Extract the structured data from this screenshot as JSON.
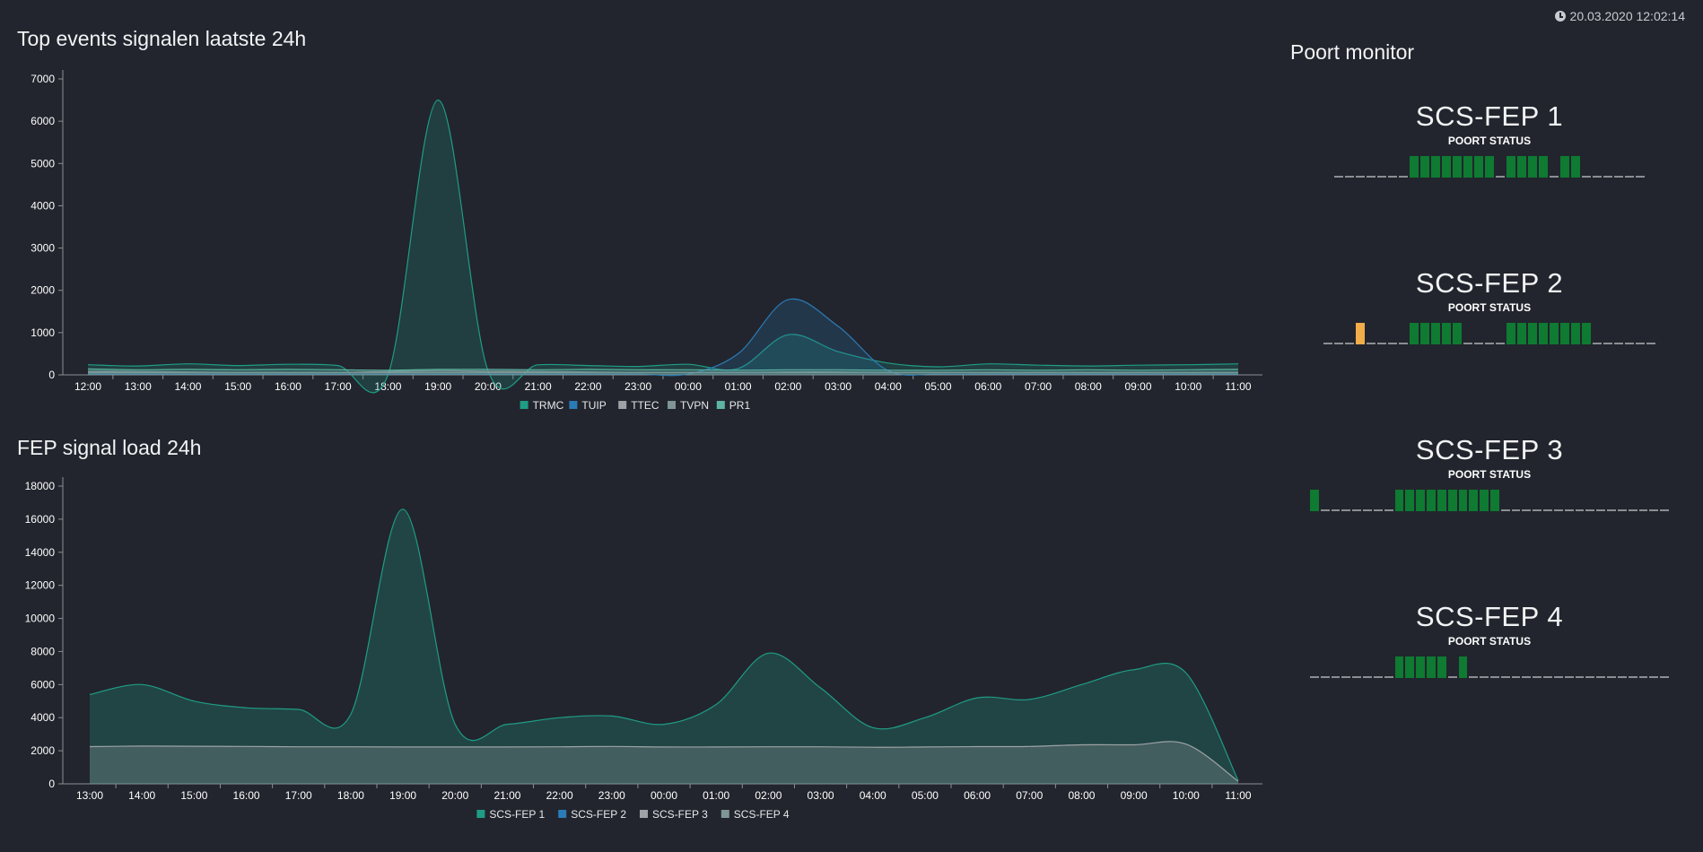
{
  "header": {
    "timestamp": "20.03.2020 12:02:14",
    "clock_icon": "clock-icon"
  },
  "panels": {
    "top_events_title": "Top events signalen laatste 24h",
    "signal_load_title": "FEP signal load 24h",
    "monitor_title": "Poort monitor"
  },
  "colors": {
    "background": "#22252d",
    "teal": "#1f9c86",
    "blue": "#2b7bb6",
    "gray": "#9ea3a6",
    "slate": "#7f9596",
    "mint": "#5fb3a4",
    "port_up": "#0e7a32",
    "port_warn": "#f2ad4a",
    "port_down": "#8b8e93"
  },
  "chart_data": [
    {
      "type": "area",
      "title": "Top events signalen laatste 24h",
      "x": [
        "12:00",
        "13:00",
        "14:00",
        "15:00",
        "16:00",
        "17:00",
        "18:00",
        "19:00",
        "20:00",
        "21:00",
        "22:00",
        "23:00",
        "00:00",
        "01:00",
        "02:00",
        "03:00",
        "04:00",
        "05:00",
        "06:00",
        "07:00",
        "08:00",
        "09:00",
        "10:00",
        "11:00"
      ],
      "ylim": [
        0,
        7000
      ],
      "yticks": [
        0,
        1000,
        2000,
        3000,
        4000,
        5000,
        6000,
        7000
      ],
      "grid": false,
      "legend": "bottom-center",
      "series": [
        {
          "name": "TRMC",
          "color": "#1f9c86",
          "values": [
            240,
            210,
            260,
            220,
            250,
            220,
            0,
            6500,
            100,
            240,
            220,
            200,
            250,
            150,
            950,
            550,
            280,
            190,
            260,
            230,
            210,
            230,
            240,
            260
          ]
        },
        {
          "name": "TUIP",
          "color": "#2b7bb6",
          "values": [
            20,
            20,
            20,
            20,
            20,
            20,
            20,
            20,
            20,
            20,
            20,
            20,
            20,
            500,
            1780,
            1150,
            100,
            20,
            20,
            20,
            20,
            20,
            20,
            20
          ]
        },
        {
          "name": "TTEC",
          "color": "#9ea3a6",
          "values": [
            60,
            60,
            60,
            60,
            60,
            60,
            60,
            60,
            60,
            60,
            60,
            60,
            60,
            60,
            60,
            60,
            60,
            60,
            60,
            60,
            60,
            60,
            60,
            60
          ]
        },
        {
          "name": "TVPN",
          "color": "#7f9596",
          "values": [
            90,
            80,
            70,
            60,
            60,
            60,
            80,
            100,
            90,
            80,
            70,
            60,
            60,
            60,
            70,
            70,
            60,
            60,
            60,
            60,
            60,
            60,
            60,
            60
          ]
        },
        {
          "name": "PR1",
          "color": "#5fb3a4",
          "values": [
            140,
            120,
            130,
            120,
            130,
            120,
            110,
            130,
            130,
            120,
            130,
            120,
            120,
            110,
            120,
            120,
            110,
            110,
            120,
            110,
            120,
            110,
            120,
            130
          ]
        }
      ]
    },
    {
      "type": "area",
      "title": "FEP signal load 24h",
      "x": [
        "13:00",
        "14:00",
        "15:00",
        "16:00",
        "17:00",
        "18:00",
        "19:00",
        "20:00",
        "21:00",
        "22:00",
        "23:00",
        "00:00",
        "01:00",
        "02:00",
        "03:00",
        "04:00",
        "05:00",
        "06:00",
        "07:00",
        "08:00",
        "09:00",
        "10:00",
        "11:00"
      ],
      "ylim": [
        0,
        18000
      ],
      "yticks": [
        0,
        2000,
        4000,
        6000,
        8000,
        10000,
        12000,
        14000,
        16000,
        18000
      ],
      "grid": false,
      "legend": "bottom-center",
      "series": [
        {
          "name": "SCS-FEP 1",
          "color": "#1f9c86",
          "values": [
            5400,
            6000,
            5000,
            4600,
            4500,
            4200,
            16600,
            3600,
            3600,
            4000,
            4100,
            3600,
            4800,
            7900,
            5800,
            3400,
            4000,
            5200,
            5100,
            6000,
            6900,
            6700,
            200
          ]
        },
        {
          "name": "SCS-FEP 2",
          "color": "#2b7bb6",
          "values": [
            0,
            0,
            0,
            0,
            0,
            0,
            0,
            0,
            0,
            0,
            0,
            0,
            0,
            0,
            0,
            0,
            0,
            0,
            0,
            0,
            0,
            0,
            0
          ]
        },
        {
          "name": "SCS-FEP 3",
          "color": "#9ea3a6",
          "values": [
            2250,
            2280,
            2270,
            2260,
            2240,
            2240,
            2230,
            2230,
            2230,
            2240,
            2260,
            2230,
            2230,
            2240,
            2240,
            2210,
            2230,
            2250,
            2260,
            2360,
            2360,
            2400,
            150
          ]
        },
        {
          "name": "SCS-FEP 4",
          "color": "#7f9596",
          "values": [
            0,
            0,
            0,
            0,
            0,
            0,
            0,
            0,
            0,
            0,
            0,
            0,
            0,
            0,
            0,
            0,
            0,
            0,
            0,
            0,
            0,
            0,
            0
          ]
        }
      ]
    }
  ],
  "port_monitor": [
    {
      "name": "SCS-FEP 1",
      "status_label": "POORT STATUS",
      "ports": [
        "down",
        "down",
        "down",
        "down",
        "down",
        "down",
        "down",
        "up",
        "up",
        "up",
        "up",
        "up",
        "up",
        "up",
        "up",
        "down",
        "up",
        "up",
        "up",
        "up",
        "down",
        "up",
        "up",
        "down",
        "down",
        "down",
        "down",
        "down",
        "down"
      ]
    },
    {
      "name": "SCS-FEP 2",
      "status_label": "POORT STATUS",
      "ports": [
        "down",
        "down",
        "down",
        "warn",
        "down",
        "down",
        "down",
        "down",
        "up",
        "up",
        "up",
        "up",
        "up",
        "down",
        "down",
        "down",
        "down",
        "up",
        "up",
        "up",
        "up",
        "up",
        "up",
        "up",
        "up",
        "down",
        "down",
        "down",
        "down",
        "down",
        "down"
      ]
    },
    {
      "name": "SCS-FEP 3",
      "status_label": "POORT STATUS",
      "ports": [
        "up",
        "down",
        "down",
        "down",
        "down",
        "down",
        "down",
        "down",
        "up",
        "up",
        "up",
        "up",
        "up",
        "up",
        "up",
        "up",
        "up",
        "up",
        "down",
        "down",
        "down",
        "down",
        "down",
        "down",
        "down",
        "down",
        "down",
        "down",
        "down",
        "down",
        "down",
        "down",
        "down",
        "down"
      ]
    },
    {
      "name": "SCS-FEP 4",
      "status_label": "POORT STATUS",
      "ports": [
        "down",
        "down",
        "down",
        "down",
        "down",
        "down",
        "down",
        "down",
        "up",
        "up",
        "up",
        "up",
        "up",
        "down",
        "up",
        "down",
        "down",
        "down",
        "down",
        "down",
        "down",
        "down",
        "down",
        "down",
        "down",
        "down",
        "down",
        "down",
        "down",
        "down",
        "down",
        "down",
        "down",
        "down"
      ]
    }
  ]
}
